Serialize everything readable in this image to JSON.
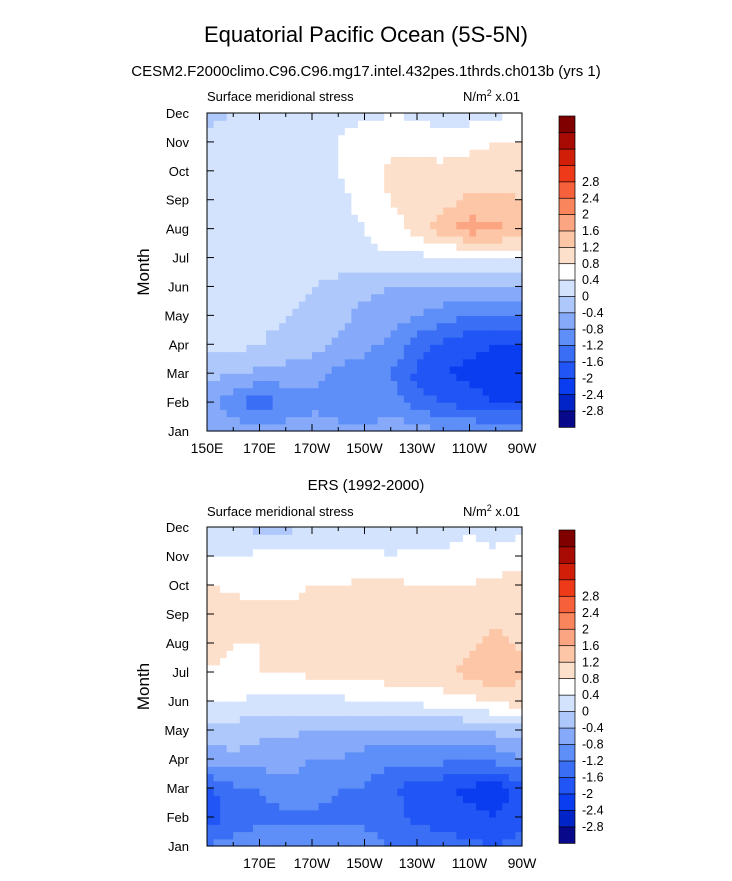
{
  "title": "Equatorial Pacific Ocean (5S-5N)",
  "subtitle": "CESM2.F2000climo.C96.C96.mg17.intel.432pes.1thrds.ch013b (yrs 1)",
  "colors": [
    "#08088a",
    "#0024c8",
    "#0a3cf0",
    "#2155f5",
    "#3a6ff5",
    "#5e8ef7",
    "#86aaf9",
    "#aec8fb",
    "#d3e3fd",
    "#ffffff",
    "#fde0cc",
    "#fcc6a7",
    "#fba582",
    "#f9855c",
    "#f6603a",
    "#ef3a1a",
    "#d11e08",
    "#a80b04",
    "#800000"
  ],
  "levels": [
    -2.8,
    -2.4,
    -2,
    -1.6,
    -1.2,
    -0.8,
    -0.4,
    0,
    0.4,
    0.8,
    1.2,
    1.6,
    2,
    2.4,
    2.8
  ],
  "chart_data": [
    {
      "type": "heatmap",
      "title": "",
      "left_label": "Surface meridional stress",
      "right_label": "N/m",
      "right_label_sup": "2",
      "right_label_suffix": " x.01",
      "xlabel": "",
      "ylabel": "Month",
      "xlim": [
        150,
        270
      ],
      "x_tick_labels": [
        "150E",
        "170E",
        "170W",
        "150W",
        "130W",
        "110W",
        "90W"
      ],
      "y_tick_labels": [
        "Jan",
        "Feb",
        "Mar",
        "Apr",
        "May",
        "Jun",
        "Jul",
        "Aug",
        "Sep",
        "Oct",
        "Nov",
        "Dec"
      ],
      "x": [
        150,
        160,
        170,
        180,
        190,
        200,
        210,
        220,
        230,
        240,
        250,
        260,
        270
      ],
      "y_months": [
        "Jan",
        "Feb",
        "Mar",
        "Apr",
        "May",
        "Jun",
        "Jul",
        "Aug",
        "Sep",
        "Oct",
        "Nov",
        "Dec"
      ],
      "z": [
        [
          -0.6,
          -0.6,
          -0.7,
          -0.6,
          -0.6,
          -0.7,
          -0.7,
          -0.5,
          -0.6,
          -0.8,
          -0.8,
          -0.9,
          -0.9
        ],
        [
          -0.7,
          -1.0,
          -1.5,
          -1.1,
          -0.9,
          -1.0,
          -1.2,
          -1.0,
          -1.4,
          -1.6,
          -1.8,
          -2.0,
          -2.0
        ],
        [
          -0.3,
          -0.4,
          -0.5,
          -0.6,
          -0.7,
          -0.9,
          -1.0,
          -1.2,
          -1.7,
          -2.0,
          -2.1,
          -2.2,
          -2.2
        ],
        [
          0.1,
          0.1,
          0.0,
          -0.1,
          -0.2,
          -0.5,
          -0.7,
          -0.9,
          -1.4,
          -1.7,
          -1.9,
          -2.0,
          -2.0
        ],
        [
          0.2,
          0.2,
          0.1,
          0.0,
          -0.1,
          -0.3,
          -0.5,
          -0.6,
          -0.8,
          -1.0,
          -1.2,
          -1.3,
          -1.3
        ],
        [
          0.3,
          0.3,
          0.2,
          0.2,
          0.0,
          -0.2,
          -0.3,
          -0.4,
          -0.5,
          -0.5,
          -0.5,
          -0.4,
          -0.3
        ],
        [
          0.3,
          0.3,
          0.3,
          0.3,
          0.4,
          0.3,
          0.3,
          0.3,
          0.3,
          0.3,
          0.3,
          0.4,
          0.5
        ],
        [
          0.4,
          0.3,
          0.3,
          0.3,
          0.3,
          0.3,
          0.4,
          0.7,
          0.9,
          1.5,
          1.8,
          1.7,
          1.5
        ],
        [
          0.4,
          0.3,
          0.3,
          0.3,
          0.3,
          0.3,
          0.5,
          0.8,
          0.9,
          1.0,
          1.3,
          1.3,
          1.2
        ],
        [
          0.3,
          0.3,
          0.3,
          0.3,
          0.3,
          0.4,
          0.6,
          0.9,
          0.9,
          0.9,
          1.0,
          1.0,
          0.9
        ],
        [
          0.1,
          0.2,
          0.3,
          0.3,
          0.3,
          0.4,
          0.6,
          0.7,
          0.7,
          0.6,
          0.7,
          0.8,
          0.8
        ],
        [
          -0.1,
          0.0,
          0.2,
          0.2,
          0.2,
          0.3,
          0.3,
          0.4,
          0.3,
          0.2,
          0.2,
          0.3,
          0.6
        ]
      ]
    },
    {
      "type": "heatmap",
      "title": "ERS (1992-2000)",
      "left_label": "Surface meridional stress",
      "right_label": "N/m",
      "right_label_sup": "2",
      "right_label_suffix": " x.01",
      "xlabel": "",
      "ylabel": "Month",
      "xlim": [
        150,
        270
      ],
      "x_tick_labels": [
        "170E",
        "170W",
        "150W",
        "130W",
        "110W",
        "90W"
      ],
      "y_tick_labels": [
        "Jan",
        "Feb",
        "Mar",
        "Apr",
        "May",
        "Jun",
        "Jul",
        "Aug",
        "Sep",
        "Oct",
        "Nov",
        "Dec"
      ],
      "x": [
        150,
        160,
        170,
        180,
        190,
        200,
        210,
        220,
        230,
        240,
        250,
        260,
        270
      ],
      "y_months": [
        "Jan",
        "Feb",
        "Mar",
        "Apr",
        "May",
        "Jun",
        "Jul",
        "Aug",
        "Sep",
        "Oct",
        "Nov",
        "Dec"
      ],
      "z": [
        [
          -1.2,
          -1.0,
          -0.9,
          -0.9,
          -0.9,
          -1.0,
          -1.0,
          -1.2,
          -1.3,
          -1.4,
          -1.5,
          -1.6,
          -1.4
        ],
        [
          -1.8,
          -1.5,
          -1.3,
          -1.3,
          -1.3,
          -1.3,
          -1.3,
          -1.5,
          -1.7,
          -1.8,
          -1.9,
          -2.0,
          -1.8
        ],
        [
          -1.7,
          -1.3,
          -1.2,
          -1.0,
          -1.0,
          -1.2,
          -1.2,
          -1.5,
          -1.8,
          -1.9,
          -2.1,
          -2.2,
          -1.9
        ],
        [
          -0.6,
          -0.5,
          -0.6,
          -0.6,
          -0.8,
          -0.8,
          -1.0,
          -1.1,
          -1.1,
          -1.1,
          -1.1,
          -1.1,
          -0.8
        ],
        [
          -0.2,
          -0.2,
          -0.3,
          -0.3,
          -0.4,
          -0.4,
          -0.5,
          -0.5,
          -0.5,
          -0.4,
          -0.4,
          -0.3,
          -0.2
        ],
        [
          0.4,
          0.4,
          0.3,
          0.3,
          0.3,
          0.3,
          0.4,
          0.5,
          0.5,
          0.6,
          0.7,
          0.9,
          1.0
        ],
        [
          0.8,
          0.7,
          0.8,
          0.8,
          0.9,
          0.9,
          1.0,
          1.0,
          1.0,
          1.1,
          1.3,
          1.5,
          1.3
        ],
        [
          0.9,
          0.8,
          0.8,
          0.9,
          1.0,
          1.0,
          1.1,
          1.2,
          1.0,
          1.0,
          1.1,
          1.3,
          1.1
        ],
        [
          1.2,
          1.0,
          0.9,
          0.9,
          0.9,
          1.0,
          1.1,
          1.2,
          1.0,
          1.0,
          1.0,
          1.1,
          1.0
        ],
        [
          0.8,
          0.7,
          0.7,
          0.7,
          0.8,
          0.8,
          0.9,
          0.9,
          0.8,
          0.8,
          0.8,
          0.9,
          1.0
        ],
        [
          0.4,
          0.4,
          0.5,
          0.5,
          0.5,
          0.5,
          0.5,
          0.4,
          0.5,
          0.5,
          0.6,
          0.5,
          0.7
        ],
        [
          0.1,
          0.0,
          -0.1,
          -0.1,
          0.0,
          0.0,
          0.1,
          0.2,
          0.2,
          0.2,
          0.3,
          0.2,
          0.3
        ]
      ]
    }
  ]
}
